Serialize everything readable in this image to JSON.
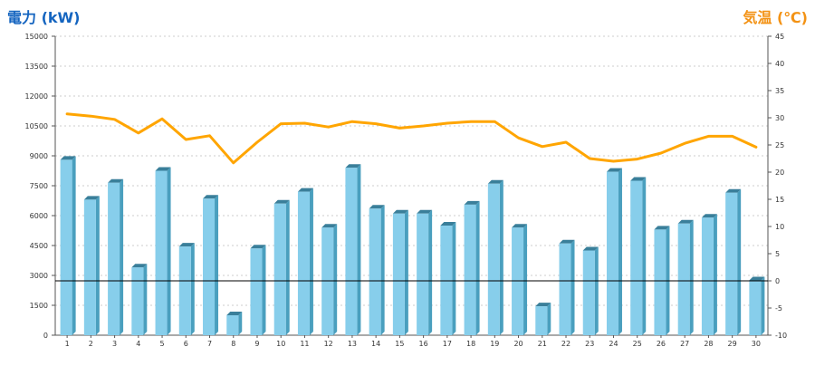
{
  "colors": {
    "power_bar": "#87CEEB",
    "power_bar_side": "#4A9FBE",
    "power_bar_top": "#3A7F9A",
    "temperature_line": "#FFA500",
    "power_title": "#1565C0",
    "temp_title": "#F39214",
    "grid": "#cccccc",
    "zero_line": "#000000"
  },
  "axis_titles": {
    "left": "電力 (kW)",
    "right": "気温 (℃)"
  },
  "chart_data": {
    "type": "bar",
    "categories": [
      "1",
      "2",
      "3",
      "4",
      "5",
      "6",
      "7",
      "8",
      "9",
      "10",
      "11",
      "12",
      "13",
      "14",
      "15",
      "16",
      "17",
      "18",
      "19",
      "20",
      "21",
      "22",
      "23",
      "24",
      "25",
      "26",
      "27",
      "28",
      "29",
      "30"
    ],
    "series": [
      {
        "kind": "bar",
        "axis": "left",
        "values": [
          8800,
          6800,
          7650,
          3400,
          8250,
          4450,
          6850,
          1000,
          4350,
          6600,
          7200,
          5400,
          8400,
          6350,
          6100,
          6100,
          5500,
          6550,
          7600,
          5400,
          1450,
          4600,
          4250,
          8200,
          7750,
          5300,
          5600,
          5900,
          7150,
          2750
        ]
      },
      {
        "kind": "line",
        "axis": "right",
        "values": [
          30.7,
          30.3,
          29.7,
          27.2,
          29.8,
          26.0,
          26.7,
          21.7,
          25.5,
          28.9,
          29.0,
          28.3,
          29.3,
          28.9,
          28.1,
          28.5,
          29.0,
          29.3,
          29.3,
          26.3,
          24.7,
          25.5,
          22.5,
          22.0,
          22.4,
          23.5,
          25.3,
          26.6,
          26.6,
          24.6
        ]
      }
    ],
    "yleft": {
      "lim": [
        0,
        15000
      ],
      "ticks": [
        0,
        1500,
        3000,
        4500,
        6000,
        7500,
        9000,
        10500,
        12000,
        13500,
        15000
      ]
    },
    "yright": {
      "lim": [
        -10,
        45
      ],
      "ticks": [
        -10,
        -5,
        0,
        5,
        10,
        15,
        20,
        25,
        30,
        35,
        40,
        45
      ]
    },
    "grid": true,
    "reference_line": {
      "axis": "right",
      "value": 0
    }
  }
}
